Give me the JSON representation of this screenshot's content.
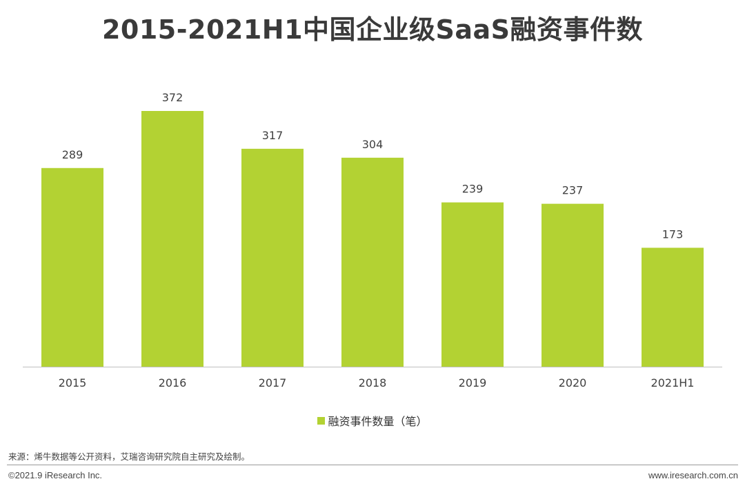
{
  "title": "2015-2021H1中国企业级SaaS融资事件数",
  "colors": {
    "bar": "#b3d233",
    "axis": "#bfbfbf",
    "label": "#404040"
  },
  "chart_data": {
    "type": "bar",
    "title": "2015-2021H1中国企业级SaaS融资事件数",
    "categories": [
      "2015",
      "2016",
      "2017",
      "2018",
      "2019",
      "2020",
      "2021H1"
    ],
    "series": [
      {
        "name": "融资事件数量（笔）",
        "values": [
          289,
          372,
          317,
          304,
          239,
          237,
          173
        ]
      }
    ],
    "xlabel": "",
    "ylabel": "",
    "ylim": [
      0,
      372
    ],
    "grid": false,
    "legend": "bottom-center"
  },
  "legend": {
    "label": "融资事件数量（笔）"
  },
  "footer": {
    "source": "来源：烯牛数据等公开资料，艾瑞咨询研究院自主研究及绘制。",
    "copyright": "©2021.9 iResearch Inc.",
    "website": "www.iresearch.com.cn"
  }
}
